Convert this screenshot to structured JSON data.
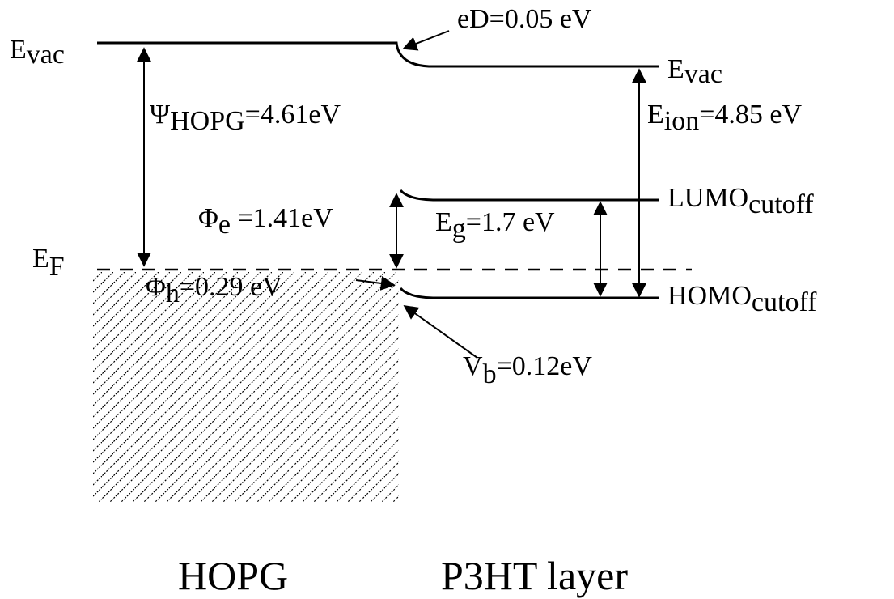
{
  "levels": {
    "hopg_vacuum": {
      "base": "E",
      "sub": "vac"
    },
    "p3ht_vacuum": {
      "base": "E",
      "sub": "vac"
    },
    "fermi": {
      "base": "E",
      "sub": "F"
    },
    "lumo": {
      "base": "LUMO",
      "sub": "cutoff"
    },
    "homo": {
      "base": "HOMO",
      "sub": "cutoff"
    }
  },
  "annotations": {
    "dipole": "eD=0.05 eV",
    "work_function": {
      "base": "Ψ",
      "sub": "HOPG",
      "rest": "=4.61eV"
    },
    "ionization": {
      "base": "E",
      "sub": "ion",
      "rest": "=4.85 eV"
    },
    "electron_barrier": {
      "base": "Φ",
      "sub": "e",
      "rest": " =1.41eV"
    },
    "band_gap": {
      "base": "E",
      "sub": "g",
      "rest": "=1.7 eV"
    },
    "hole_barrier": {
      "base": "Φ",
      "sub": "h",
      "rest": "=0.29 eV"
    },
    "band_bending": {
      "base": "V",
      "sub": "b",
      "rest": "=0.12eV"
    }
  },
  "materials": {
    "left": "HOPG",
    "right": "P3HT layer"
  }
}
